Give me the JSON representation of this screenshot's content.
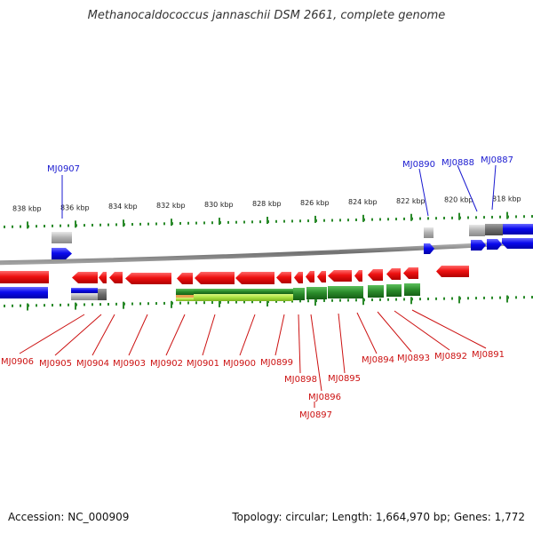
{
  "title": "Methanocaldococcus jannaschii DSM 2661, complete genome",
  "footer": {
    "accession": "Accession: NC_000909",
    "summary": "Topology: circular; Length: 1,664,970 bp; Genes: 1,772"
  },
  "colors": {
    "forward_label": "#1a1ad0",
    "reverse_label": "#cc1111",
    "tick": "#2a8a2a",
    "backbone": "#808080",
    "forward_gene": "#0a0aee",
    "reverse_gene": "#ee1111",
    "pseudo_gene": "#b0b0b0",
    "rna_green": "#2a8a2a",
    "rna_light": "#a8e040"
  },
  "scale_labels": [
    "838 kbp",
    "836 kbp",
    "834 kbp",
    "832 kbp",
    "830 kbp",
    "828 kbp",
    "826 kbp",
    "824 kbp",
    "822 kbp",
    "820 kbp",
    "818 kbp"
  ],
  "forward_gene_labels": [
    "MJ0907",
    "MJ0890",
    "MJ0888",
    "MJ0887"
  ],
  "reverse_gene_labels": [
    "MJ0906",
    "MJ0905",
    "MJ0904",
    "MJ0903",
    "MJ0902",
    "MJ0901",
    "MJ0900",
    "MJ0899",
    "MJ0898",
    "MJ0897",
    "MJ0896",
    "MJ0895",
    "MJ0894",
    "MJ0893",
    "MJ0892",
    "MJ0891"
  ]
}
